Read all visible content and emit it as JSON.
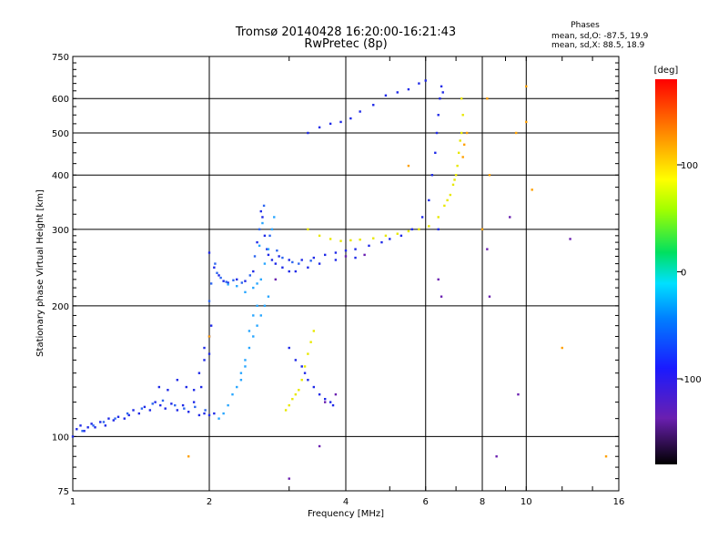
{
  "chart_data": {
    "type": "scatter",
    "title": "Tromsø 20140428 16:20:00-16:21:43",
    "subtitle": "RwPretec (8p)",
    "xlabel": "Frequency [MHz]",
    "ylabel": "Stationary phase Virtual Height [km]",
    "x_scale": "log",
    "y_scale": "log",
    "xlim": [
      1,
      16
    ],
    "ylim": [
      75,
      750
    ],
    "x_ticks": [
      1,
      2,
      4,
      6,
      8,
      10,
      16
    ],
    "y_ticks": [
      75,
      100,
      200,
      300,
      400,
      500,
      600,
      750
    ],
    "grid": true,
    "annotation": {
      "heading": "Phases",
      "line1": "mean, sd,O:  -87.5, 19.9",
      "line2": "mean, sd,X:  88.5, 18.9"
    },
    "colorbar": {
      "label": "[deg]",
      "ticks": [
        100,
        0,
        -100
      ],
      "range": [
        -180,
        180
      ]
    },
    "colors": {
      "blue": "#1f2ae8",
      "lightblue": "#28a6ff",
      "midblue": "#2d66f0",
      "yellow": "#e8e800",
      "orange": "#ffa000",
      "purple": "#6a1fb0"
    },
    "series": [
      {
        "color_key": "blue",
        "points": [
          [
            1.0,
            100
          ],
          [
            1.02,
            104
          ],
          [
            1.04,
            106
          ],
          [
            1.06,
            103
          ],
          [
            1.08,
            105
          ],
          [
            1.1,
            107
          ],
          [
            1.12,
            105
          ],
          [
            1.15,
            108
          ],
          [
            1.18,
            106
          ],
          [
            1.2,
            110
          ],
          [
            1.23,
            109
          ],
          [
            1.26,
            111
          ],
          [
            1.3,
            110
          ],
          [
            1.33,
            112
          ],
          [
            1.36,
            115
          ],
          [
            1.4,
            113
          ],
          [
            1.44,
            117
          ],
          [
            1.48,
            115
          ],
          [
            1.52,
            120
          ],
          [
            1.56,
            118
          ],
          [
            1.6,
            116
          ],
          [
            1.65,
            119
          ],
          [
            1.7,
            115
          ],
          [
            1.75,
            118
          ],
          [
            1.8,
            114
          ],
          [
            1.85,
            120
          ],
          [
            1.9,
            112
          ],
          [
            1.95,
            113
          ],
          [
            2.0,
            112
          ],
          [
            2.05,
            113
          ],
          [
            1.55,
            130
          ],
          [
            1.62,
            128
          ],
          [
            1.7,
            135
          ],
          [
            1.78,
            130
          ],
          [
            1.85,
            128
          ],
          [
            1.9,
            140
          ],
          [
            1.95,
            150
          ],
          [
            2.0,
            155
          ],
          [
            2.0,
            170
          ],
          [
            2.02,
            180
          ],
          [
            1.95,
            160
          ],
          [
            1.92,
            130
          ],
          [
            2.0,
            265
          ],
          [
            2.05,
            245
          ],
          [
            2.1,
            235
          ],
          [
            2.15,
            228
          ],
          [
            2.2,
            226
          ],
          [
            2.3,
            230
          ],
          [
            2.4,
            228
          ],
          [
            2.5,
            240
          ],
          [
            2.55,
            280
          ],
          [
            2.6,
            330
          ],
          [
            2.62,
            320
          ],
          [
            2.65,
            290
          ],
          [
            2.68,
            270
          ],
          [
            2.7,
            262
          ],
          [
            2.75,
            255
          ],
          [
            2.8,
            250
          ],
          [
            3.0,
            255
          ],
          [
            3.2,
            255
          ],
          [
            3.4,
            258
          ],
          [
            3.6,
            262
          ],
          [
            3.8,
            265
          ],
          [
            4.0,
            268
          ],
          [
            4.2,
            270
          ],
          [
            4.5,
            275
          ],
          [
            4.8,
            280
          ],
          [
            5.0,
            285
          ],
          [
            5.3,
            290
          ],
          [
            5.6,
            300
          ],
          [
            5.9,
            320
          ],
          [
            6.1,
            350
          ],
          [
            6.2,
            400
          ],
          [
            6.3,
            450
          ],
          [
            6.35,
            500
          ],
          [
            6.4,
            550
          ],
          [
            6.45,
            600
          ],
          [
            6.5,
            640
          ],
          [
            6.55,
            620
          ],
          [
            6.4,
            300
          ],
          [
            3.0,
            160
          ],
          [
            3.1,
            150
          ],
          [
            3.2,
            145
          ],
          [
            3.25,
            140
          ],
          [
            3.3,
            135
          ],
          [
            3.4,
            130
          ],
          [
            3.5,
            125
          ],
          [
            3.6,
            122
          ],
          [
            3.7,
            120
          ],
          [
            3.75,
            118
          ],
          [
            3.3,
            500
          ],
          [
            3.5,
            515
          ],
          [
            3.7,
            525
          ],
          [
            3.9,
            530
          ],
          [
            4.1,
            540
          ],
          [
            4.3,
            560
          ],
          [
            4.6,
            580
          ],
          [
            4.9,
            610
          ],
          [
            5.2,
            620
          ],
          [
            5.5,
            630
          ],
          [
            5.8,
            650
          ],
          [
            6.0,
            660
          ],
          [
            2.85,
            260
          ],
          [
            2.9,
            245
          ],
          [
            3.0,
            240
          ],
          [
            3.1,
            240
          ],
          [
            3.3,
            245
          ],
          [
            3.5,
            250
          ],
          [
            3.8,
            255
          ],
          [
            4.2,
            258
          ]
        ]
      },
      {
        "color_key": "lightblue",
        "points": [
          [
            2.1,
            110
          ],
          [
            2.15,
            113
          ],
          [
            2.2,
            118
          ],
          [
            2.25,
            125
          ],
          [
            2.3,
            130
          ],
          [
            2.35,
            140
          ],
          [
            2.4,
            150
          ],
          [
            2.45,
            160
          ],
          [
            2.5,
            170
          ],
          [
            2.55,
            180
          ],
          [
            2.6,
            190
          ],
          [
            2.65,
            200
          ],
          [
            2.7,
            210
          ],
          [
            2.55,
            200
          ],
          [
            2.5,
            190
          ],
          [
            2.45,
            175
          ],
          [
            2.6,
            230
          ],
          [
            2.65,
            250
          ],
          [
            2.7,
            270
          ],
          [
            2.75,
            300
          ],
          [
            2.78,
            320
          ],
          [
            2.62,
            310
          ],
          [
            2.58,
            275
          ],
          [
            2.55,
            225
          ],
          [
            2.5,
            220
          ],
          [
            2.4,
            215
          ],
          [
            2.3,
            222
          ],
          [
            2.2,
            224
          ],
          [
            2.35,
            135
          ],
          [
            2.4,
            145
          ]
        ]
      },
      {
        "color_key": "midblue",
        "points": [
          [
            1.05,
            103
          ],
          [
            1.11,
            106
          ],
          [
            1.17,
            108
          ],
          [
            1.24,
            110
          ],
          [
            1.32,
            113
          ],
          [
            1.42,
            116
          ],
          [
            1.5,
            119
          ],
          [
            1.58,
            121
          ],
          [
            1.68,
            118
          ],
          [
            1.76,
            116
          ],
          [
            1.86,
            117
          ],
          [
            1.96,
            115
          ],
          [
            2.0,
            205
          ],
          [
            2.02,
            225
          ],
          [
            2.06,
            250
          ],
          [
            2.08,
            238
          ],
          [
            2.12,
            232
          ],
          [
            2.18,
            227
          ],
          [
            2.26,
            229
          ],
          [
            2.36,
            226
          ],
          [
            2.46,
            235
          ],
          [
            2.52,
            260
          ],
          [
            2.58,
            300
          ],
          [
            2.64,
            340
          ],
          [
            2.72,
            290
          ],
          [
            2.82,
            268
          ],
          [
            2.9,
            258
          ],
          [
            3.05,
            252
          ],
          [
            3.15,
            250
          ],
          [
            3.35,
            254
          ]
        ]
      },
      {
        "color_key": "yellow",
        "points": [
          [
            2.95,
            115
          ],
          [
            3.0,
            118
          ],
          [
            3.05,
            122
          ],
          [
            3.1,
            125
          ],
          [
            3.15,
            128
          ],
          [
            3.2,
            135
          ],
          [
            3.25,
            145
          ],
          [
            3.3,
            155
          ],
          [
            3.35,
            165
          ],
          [
            3.4,
            175
          ],
          [
            3.3,
            300
          ],
          [
            3.5,
            290
          ],
          [
            3.7,
            285
          ],
          [
            3.9,
            282
          ],
          [
            4.1,
            283
          ],
          [
            4.3,
            284
          ],
          [
            4.6,
            286
          ],
          [
            4.9,
            290
          ],
          [
            5.2,
            293
          ],
          [
            5.5,
            297
          ],
          [
            5.8,
            300
          ],
          [
            6.1,
            305
          ],
          [
            6.4,
            320
          ],
          [
            6.6,
            340
          ],
          [
            6.8,
            360
          ],
          [
            7.0,
            400
          ],
          [
            7.1,
            450
          ],
          [
            7.2,
            500
          ],
          [
            7.25,
            550
          ],
          [
            7.2,
            600
          ],
          [
            6.9,
            380
          ],
          [
            6.7,
            350
          ],
          [
            7.05,
            420
          ],
          [
            7.15,
            480
          ],
          [
            6.95,
            390
          ]
        ]
      },
      {
        "color_key": "orange",
        "points": [
          [
            7.4,
            500
          ],
          [
            7.3,
            470
          ],
          [
            7.25,
            440
          ],
          [
            8.2,
            600
          ],
          [
            8.3,
            400
          ],
          [
            9.5,
            500
          ],
          [
            10.0,
            640
          ],
          [
            10.0,
            530
          ],
          [
            10.3,
            370
          ],
          [
            12.0,
            160
          ],
          [
            15.0,
            90
          ],
          [
            2.0,
            170
          ],
          [
            1.8,
            90
          ],
          [
            5.5,
            420
          ],
          [
            8.0,
            300
          ]
        ]
      },
      {
        "color_key": "purple",
        "points": [
          [
            3.6,
            120
          ],
          [
            3.8,
            125
          ],
          [
            4.0,
            260
          ],
          [
            4.4,
            262
          ],
          [
            6.4,
            230
          ],
          [
            6.5,
            210
          ],
          [
            8.2,
            270
          ],
          [
            8.3,
            210
          ],
          [
            8.6,
            90
          ],
          [
            9.2,
            320
          ],
          [
            9.6,
            125
          ],
          [
            12.5,
            285
          ],
          [
            2.8,
            230
          ],
          [
            3.0,
            80
          ],
          [
            3.5,
            95
          ]
        ]
      }
    ]
  }
}
